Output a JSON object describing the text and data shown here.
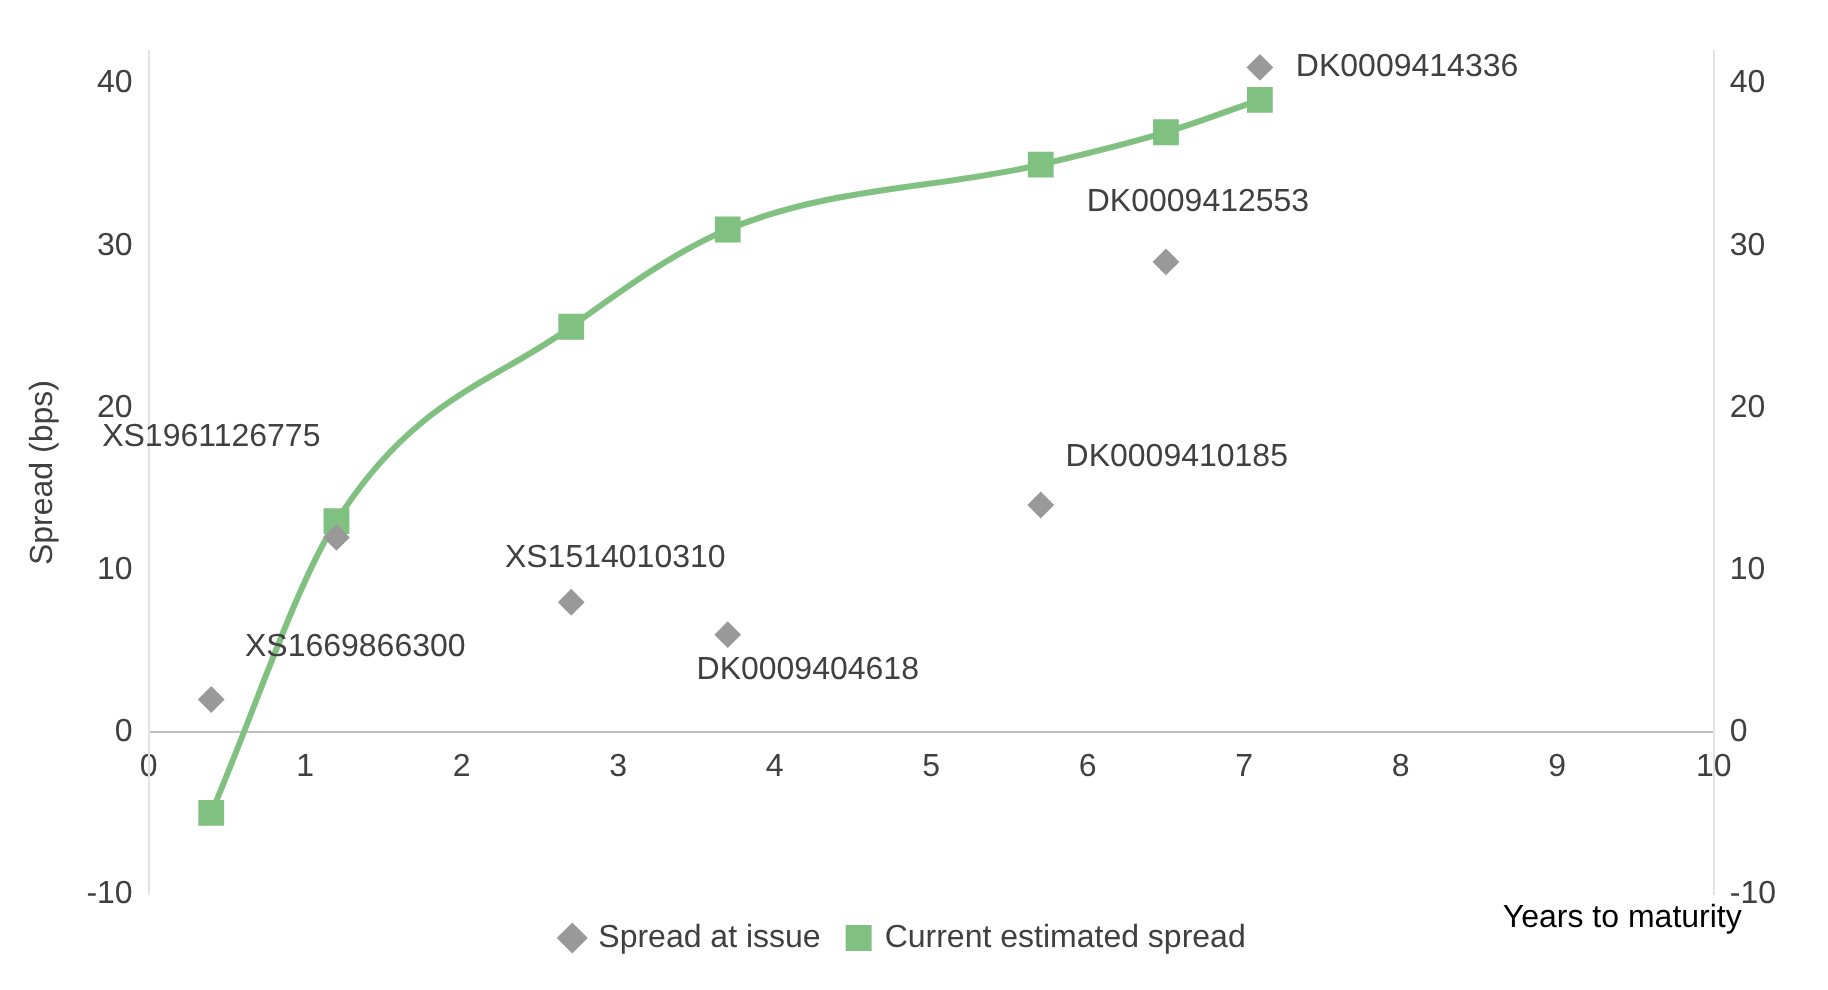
{
  "chart_data": {
    "type": "line",
    "xlabel": "Years to maturity",
    "ylabel": "Spread (bps)",
    "xlim": [
      0,
      10
    ],
    "xticks": [
      0,
      1,
      2,
      3,
      4,
      5,
      6,
      7,
      8,
      9,
      10
    ],
    "ylim": [
      -10,
      42
    ],
    "yticks": [
      -10,
      0,
      10,
      20,
      30,
      40
    ],
    "y2lim": [
      -10,
      42
    ],
    "y2ticks": [
      -10,
      0,
      10,
      20,
      30,
      40
    ],
    "grid": false,
    "legend": "bottom",
    "series": [
      {
        "name": "Spread at issue",
        "type": "scatter",
        "marker": "diamond",
        "color": "#999999",
        "x": [
          0.4,
          1.2,
          2.7,
          3.7,
          5.7,
          6.5,
          7.1
        ],
        "values": [
          2,
          12,
          8,
          6,
          14,
          29,
          41
        ]
      },
      {
        "name": "Current estimated spread",
        "type": "line",
        "marker": "square",
        "color": "#80c080",
        "x": [
          0.4,
          1.2,
          2.7,
          3.7,
          5.7,
          6.5,
          7.1
        ],
        "values": [
          -5,
          13,
          25,
          31,
          35,
          37,
          39
        ]
      }
    ],
    "annotations": [
      {
        "text": "XS1669866300",
        "x": 0.4,
        "y": 2
      },
      {
        "text": "XS1961126775",
        "x": 1.2,
        "y": 12
      },
      {
        "text": "XS1514010310",
        "x": 2.7,
        "y": 8
      },
      {
        "text": "DK0009404618",
        "x": 3.7,
        "y": 6
      },
      {
        "text": "DK0009410185",
        "x": 5.7,
        "y": 14
      },
      {
        "text": "DK0009412553",
        "x": 6.5,
        "y": 29
      },
      {
        "text": "DK0009414336",
        "x": 7.1,
        "y": 41
      }
    ]
  }
}
